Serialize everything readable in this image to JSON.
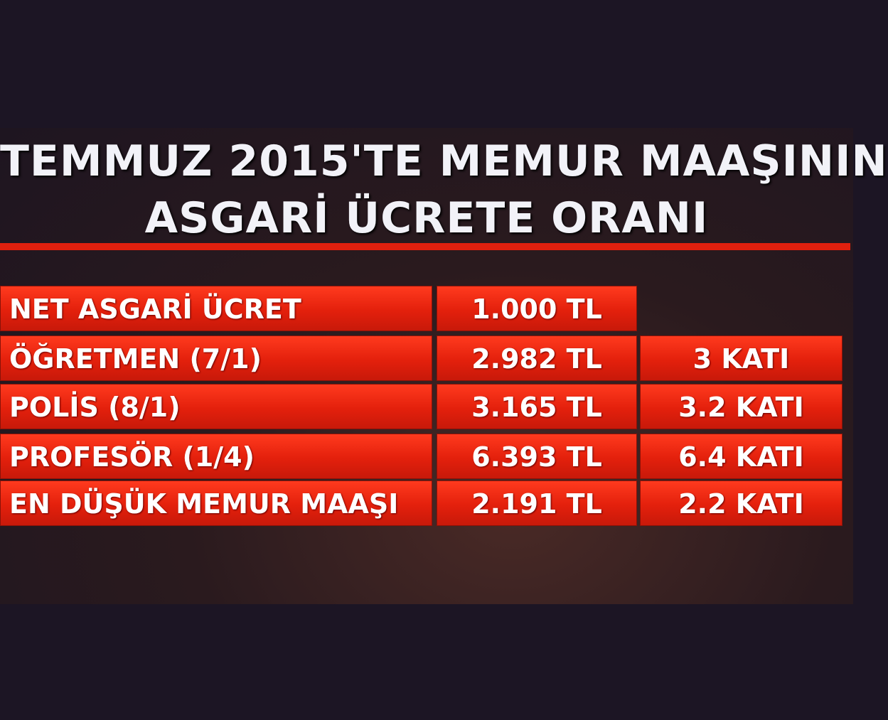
{
  "title": [
    "TEMMUZ 2015'TE MEMUR MAAŞININ",
    "ASGARİ ÜCRETE ORANI"
  ],
  "table": {
    "rows": [
      [
        "NET ASGARİ ÜCRET",
        "1.000 TL"
      ],
      [
        "ÖĞRETMEN (7/1)",
        "2.982 TL",
        "3 KATI"
      ],
      [
        "POLİS (8/1)",
        "3.165 TL",
        "3.2 KATI"
      ],
      [
        "PROFESÖR (1/4)",
        "6.393 TL",
        "6.4 KATI"
      ],
      [
        "EN DÜŞÜK MEMUR MAAŞI",
        "2.191 TL",
        "2.2 KATI"
      ]
    ]
  }
}
